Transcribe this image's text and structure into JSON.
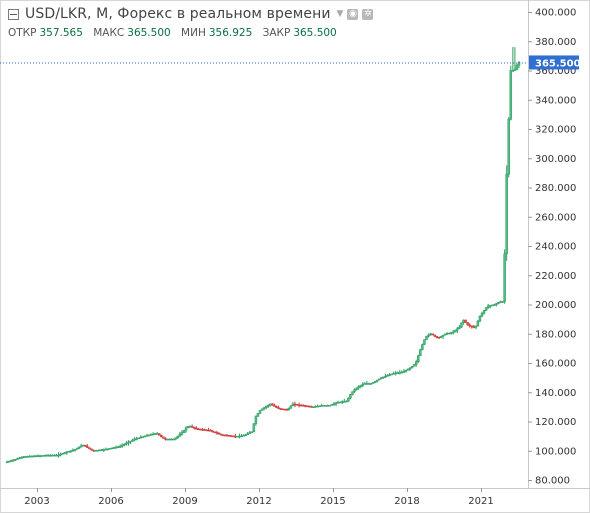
{
  "header": {
    "title": "USD/LKR, M, Форекс в реальном времени",
    "ohlc": [
      {
        "label": "ОТКР",
        "value": "357.565"
      },
      {
        "label": "МАКС",
        "value": "365.500"
      },
      {
        "label": "МИН",
        "value": "356.925"
      },
      {
        "label": "ЗАКР",
        "value": "365.500"
      }
    ]
  },
  "colors": {
    "up": "#2f9e5f",
    "up_fill": "#53b987",
    "down": "#c93c37",
    "down_fill": "#d95552",
    "price_line": "#2962c9",
    "price_tag_bg": "#2f6fd0"
  },
  "chart_data": {
    "type": "candlestick",
    "symbol": "USD/LKR",
    "interval": "M",
    "last_price": 365.5,
    "last_price_label": "365.500",
    "ylim": [
      75,
      410
    ],
    "y_ticks": [
      "80.000",
      "100.000",
      "120.000",
      "140.000",
      "160.000",
      "180.000",
      "200.000",
      "220.000",
      "240.000",
      "260.000",
      "280.000",
      "300.000",
      "320.000",
      "340.000",
      "360.000",
      "380.000",
      "400.000"
    ],
    "x_ticks": [
      "2003",
      "2006",
      "2009",
      "2012",
      "2015",
      "2018",
      "2021"
    ],
    "x_range_years": [
      2001.6,
      2022.7
    ],
    "keypoints": [
      [
        2001.75,
        92
      ],
      [
        2002.5,
        96
      ],
      [
        2003.0,
        96.5
      ],
      [
        2003.5,
        97
      ],
      [
        2003.9,
        97
      ],
      [
        2004.2,
        99
      ],
      [
        2004.6,
        101
      ],
      [
        2004.9,
        104
      ],
      [
        2005.3,
        100
      ],
      [
        2005.8,
        101
      ],
      [
        2006.4,
        103
      ],
      [
        2007.0,
        108
      ],
      [
        2007.6,
        111
      ],
      [
        2007.9,
        112
      ],
      [
        2008.2,
        108
      ],
      [
        2008.6,
        108
      ],
      [
        2008.9,
        112
      ],
      [
        2009.1,
        116
      ],
      [
        2009.2,
        117
      ],
      [
        2009.5,
        115
      ],
      [
        2010.0,
        114
      ],
      [
        2010.5,
        111
      ],
      [
        2011.0,
        110
      ],
      [
        2011.3,
        110
      ],
      [
        2011.5,
        111
      ],
      [
        2011.75,
        113
      ],
      [
        2011.9,
        123
      ],
      [
        2012.1,
        128
      ],
      [
        2012.3,
        130
      ],
      [
        2012.5,
        132
      ],
      [
        2012.8,
        129
      ],
      [
        2013.2,
        128
      ],
      [
        2013.4,
        132
      ],
      [
        2013.8,
        131
      ],
      [
        2014.2,
        130
      ],
      [
        2014.6,
        131
      ],
      [
        2014.9,
        131
      ],
      [
        2015.2,
        133
      ],
      [
        2015.6,
        134
      ],
      [
        2015.8,
        140
      ],
      [
        2016.0,
        143
      ],
      [
        2016.3,
        146
      ],
      [
        2016.6,
        146
      ],
      [
        2017.0,
        150
      ],
      [
        2017.5,
        153
      ],
      [
        2017.9,
        154
      ],
      [
        2018.2,
        157
      ],
      [
        2018.4,
        160
      ],
      [
        2018.6,
        170
      ],
      [
        2018.8,
        178
      ],
      [
        2019.0,
        180
      ],
      [
        2019.3,
        177
      ],
      [
        2019.6,
        180
      ],
      [
        2019.9,
        181
      ],
      [
        2020.2,
        185
      ],
      [
        2020.3,
        190
      ],
      [
        2020.5,
        186
      ],
      [
        2020.8,
        184
      ],
      [
        2021.0,
        192
      ],
      [
        2021.3,
        199
      ],
      [
        2021.6,
        200
      ],
      [
        2021.8,
        202
      ],
      [
        2021.95,
        202
      ],
      [
        2022.1,
        300
      ],
      [
        2022.25,
        360
      ],
      [
        2022.4,
        360
      ],
      [
        2022.55,
        365.5
      ]
    ]
  }
}
